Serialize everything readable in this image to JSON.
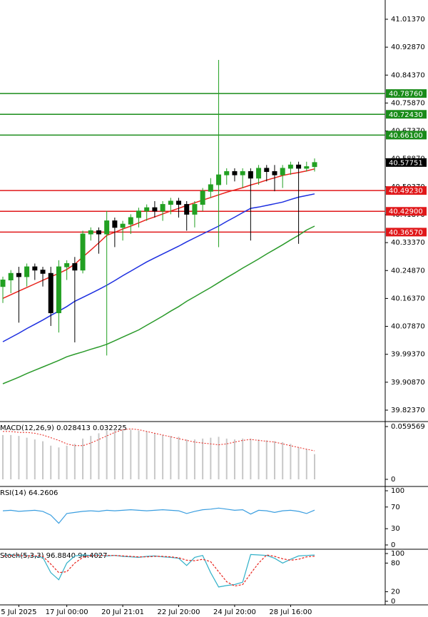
{
  "chart_data": [
    {
      "type": "candlestick",
      "categories": [
        null,
        null,
        "5 Jul 2025",
        null,
        null,
        null,
        null,
        null,
        "17 Jul 00:00",
        null,
        null,
        null,
        null,
        null,
        null,
        "20 Jul 21:01",
        null,
        null,
        null,
        null,
        null,
        null,
        "22 Jul 20:00",
        null,
        null,
        null,
        null,
        null,
        null,
        "24 Jul 20:00",
        null,
        null,
        null,
        null,
        null,
        null,
        "28 Jul 16:00",
        null,
        null,
        null
      ],
      "ohlc": [
        [
          40.2,
          40.23,
          40.15,
          40.22
        ],
        [
          40.22,
          40.25,
          40.18,
          40.24
        ],
        [
          40.24,
          40.26,
          40.09,
          40.23
        ],
        [
          40.23,
          40.27,
          40.2,
          40.26
        ],
        [
          40.26,
          40.27,
          40.22,
          40.25
        ],
        [
          40.25,
          40.26,
          40.2,
          40.24
        ],
        [
          40.24,
          40.26,
          40.08,
          40.12
        ],
        [
          40.12,
          40.28,
          40.06,
          40.26
        ],
        [
          40.26,
          40.28,
          40.22,
          40.27
        ],
        [
          40.27,
          40.29,
          40.03,
          40.25
        ],
        [
          40.25,
          40.37,
          40.24,
          40.36
        ],
        [
          40.36,
          40.38,
          40.34,
          40.37
        ],
        [
          40.37,
          40.38,
          40.3,
          40.36
        ],
        [
          40.36,
          40.43,
          39.99,
          40.4
        ],
        [
          40.4,
          40.41,
          40.32,
          40.38
        ],
        [
          40.38,
          40.4,
          40.34,
          40.39
        ],
        [
          40.39,
          40.42,
          40.36,
          40.41
        ],
        [
          40.41,
          40.44,
          40.38,
          40.43
        ],
        [
          40.43,
          40.45,
          40.4,
          40.44
        ],
        [
          40.44,
          40.46,
          40.41,
          40.43
        ],
        [
          40.43,
          40.46,
          40.4,
          40.45
        ],
        [
          40.45,
          40.47,
          40.42,
          40.46
        ],
        [
          40.46,
          40.47,
          40.41,
          40.45
        ],
        [
          40.45,
          40.46,
          40.37,
          40.42
        ],
        [
          40.42,
          40.46,
          40.38,
          40.45
        ],
        [
          40.45,
          40.5,
          40.43,
          40.49
        ],
        [
          40.49,
          40.53,
          40.47,
          40.51
        ],
        [
          40.51,
          40.89,
          40.32,
          40.54
        ],
        [
          40.54,
          40.56,
          40.51,
          40.55
        ],
        [
          40.55,
          40.56,
          40.52,
          40.54
        ],
        [
          40.54,
          40.56,
          40.5,
          40.55
        ],
        [
          40.55,
          40.56,
          40.34,
          40.53
        ],
        [
          40.53,
          40.57,
          40.51,
          40.56
        ],
        [
          40.56,
          40.57,
          40.52,
          40.55
        ],
        [
          40.55,
          40.57,
          40.49,
          40.54
        ],
        [
          40.54,
          40.57,
          40.5,
          40.56
        ],
        [
          40.56,
          40.58,
          40.54,
          40.57
        ],
        [
          40.57,
          40.58,
          40.33,
          40.56
        ],
        [
          40.56,
          40.58,
          40.55,
          40.565
        ],
        [
          40.565,
          40.59,
          40.55,
          40.5775
        ]
      ],
      "up_color": "#22a022",
      "down_color": "#000000",
      "lines": [
        {
          "color": "#e8231c",
          "values": [
            40.164,
            40.175,
            40.186,
            40.197,
            40.208,
            40.219,
            40.23,
            40.24,
            40.252,
            40.268,
            40.29,
            40.311,
            40.333,
            40.356,
            40.365,
            40.375,
            40.384,
            40.394,
            40.404,
            40.412,
            40.421,
            40.43,
            40.438,
            40.447,
            40.455,
            40.463,
            40.471,
            40.479,
            40.487,
            40.494,
            40.501,
            40.509,
            40.516,
            40.524,
            40.531,
            40.538,
            40.543,
            40.547,
            40.552,
            40.558
          ]
        },
        {
          "color": "#1c2ee0",
          "values": [
            40.032,
            40.045,
            40.058,
            40.072,
            40.085,
            40.098,
            40.112,
            40.125,
            40.139,
            40.155,
            40.167,
            40.179,
            40.191,
            40.204,
            40.218,
            40.233,
            40.247,
            40.261,
            40.275,
            40.287,
            40.299,
            40.311,
            40.323,
            40.336,
            40.348,
            40.36,
            40.372,
            40.384,
            40.398,
            40.411,
            40.425,
            40.438,
            40.442,
            40.447,
            40.452,
            40.457,
            40.465,
            40.472,
            40.477,
            40.482
          ]
        },
        {
          "color": "#2a9a2a",
          "values": [
            39.904,
            39.914,
            39.924,
            39.935,
            39.945,
            39.955,
            39.965,
            39.975,
            39.986,
            39.994,
            40.001,
            40.009,
            40.016,
            40.024,
            40.035,
            40.046,
            40.057,
            40.068,
            40.082,
            40.096,
            40.11,
            40.125,
            40.139,
            40.155,
            40.169,
            40.183,
            40.197,
            40.212,
            40.227,
            40.241,
            40.256,
            40.27,
            40.284,
            40.299,
            40.313,
            40.327,
            40.342,
            40.356,
            40.372,
            40.384
          ]
        }
      ],
      "levels": [
        {
          "value": 40.7876,
          "label": "40.78760",
          "color": "#1a8c1a"
        },
        {
          "value": 40.7243,
          "label": "40.72430",
          "color": "#1a8c1a"
        },
        {
          "value": 40.661,
          "label": "40.66100",
          "color": "#1a8c1a"
        },
        {
          "value": 40.4923,
          "label": "40.49230",
          "color": "#e0181a"
        },
        {
          "value": 40.429,
          "label": "40.42900",
          "color": "#e0181a"
        },
        {
          "value": 40.3657,
          "label": "40.36570",
          "color": "#e0181a"
        }
      ],
      "current_price": {
        "value": 40.57751,
        "label": "40.57751"
      },
      "ylim": [
        39.7911,
        41.0723
      ],
      "yticks": [
        {
          "value": 41.0137,
          "label": "41.01370"
        },
        {
          "value": 40.9287,
          "label": "40.92870"
        },
        {
          "value": 40.8437,
          "label": "40.84370"
        },
        {
          "value": 40.7587,
          "label": "40.75870"
        },
        {
          "value": 40.6737,
          "label": "40.67370"
        },
        {
          "value": 40.5887,
          "label": "40.58870"
        },
        {
          "value": 40.5037,
          "label": "40.50370"
        },
        {
          "value": 40.4187,
          "label": "40.41870"
        },
        {
          "value": 40.3337,
          "label": "40.33370"
        },
        {
          "value": 40.2487,
          "label": "40.24870"
        },
        {
          "value": 40.1637,
          "label": "40.16370"
        },
        {
          "value": 40.0787,
          "label": "40.07870"
        },
        {
          "value": 39.9937,
          "label": "39.99370"
        },
        {
          "value": 39.9087,
          "label": "39.90870"
        },
        {
          "value": 39.8237,
          "label": "39.82370"
        }
      ]
    },
    {
      "type": "macd",
      "header": "MACD(12,26,9) 0.028413 0.032225",
      "histogram": {
        "color": "#c8c8c8",
        "values": [
          0.05,
          0.05,
          0.049,
          0.047,
          0.045,
          0.043,
          0.038,
          0.036,
          0.038,
          0.04,
          0.046,
          0.049,
          0.052,
          0.055,
          0.056,
          0.057,
          0.056,
          0.055,
          0.054,
          0.052,
          0.05,
          0.049,
          0.048,
          0.045,
          0.045,
          0.046,
          0.047,
          0.048,
          0.046,
          0.045,
          0.046,
          0.046,
          0.045,
          0.044,
          0.043,
          0.042,
          0.04,
          0.036,
          0.034,
          0.028413
        ]
      },
      "signal": {
        "color": "#e8231c",
        "values": [
          0.054,
          0.054,
          0.053,
          0.053,
          0.052,
          0.05,
          0.047,
          0.044,
          0.04,
          0.038,
          0.038,
          0.041,
          0.045,
          0.049,
          0.053,
          0.056,
          0.057,
          0.056,
          0.054,
          0.052,
          0.05,
          0.048,
          0.046,
          0.044,
          0.042,
          0.041,
          0.04,
          0.039,
          0.04,
          0.042,
          0.044,
          0.045,
          0.044,
          0.043,
          0.042,
          0.04,
          0.038,
          0.036,
          0.034,
          0.032225
        ]
      },
      "ylim": [
        -0.00644,
        0.06441
      ],
      "yticks": [
        0.059569,
        0
      ]
    },
    {
      "type": "line",
      "header": "RSI(14) 64.2606",
      "series": [
        {
          "color": "#3a9ee0",
          "values": [
            63,
            64,
            62,
            63,
            64,
            62,
            55,
            40,
            58,
            60,
            62,
            63,
            62,
            64,
            63,
            64,
            65,
            64,
            63,
            64,
            65,
            64,
            63,
            58,
            62,
            65,
            66,
            68,
            66,
            64,
            65,
            57,
            64,
            63,
            60,
            63,
            64,
            62,
            58,
            64.2606
          ]
        }
      ],
      "ylim": [
        -6.6,
        106.6
      ],
      "yticks": [
        100,
        70,
        30,
        0
      ]
    },
    {
      "type": "line",
      "header": "Stoch(5,3,3) 96.8840 94.4027",
      "series": [
        {
          "color": "#30b0c8",
          "values": [
            96,
            97,
            95,
            96,
            94,
            92,
            60,
            45,
            80,
            95,
            97,
            96,
            97,
            95,
            96,
            94,
            93,
            92,
            94,
            95,
            93,
            92,
            90,
            75,
            92,
            96,
            60,
            30,
            33,
            35,
            40,
            98,
            97,
            96,
            90,
            80,
            88,
            95,
            96,
            96.884
          ]
        },
        {
          "color": "#e8231c",
          "dashed": true,
          "values": [
            95,
            96,
            96,
            95,
            95,
            94,
            78,
            60,
            62,
            80,
            92,
            96,
            96,
            96,
            96,
            95,
            94,
            93,
            93,
            94,
            94,
            93,
            91,
            86,
            85,
            88,
            83,
            62,
            41,
            32,
            35,
            58,
            80,
            97,
            94,
            89,
            86,
            88,
            93,
            94.4027
          ]
        }
      ],
      "ylim": [
        -7.5,
        107.5
      ],
      "yticks": [
        100,
        80,
        20,
        0
      ]
    }
  ]
}
